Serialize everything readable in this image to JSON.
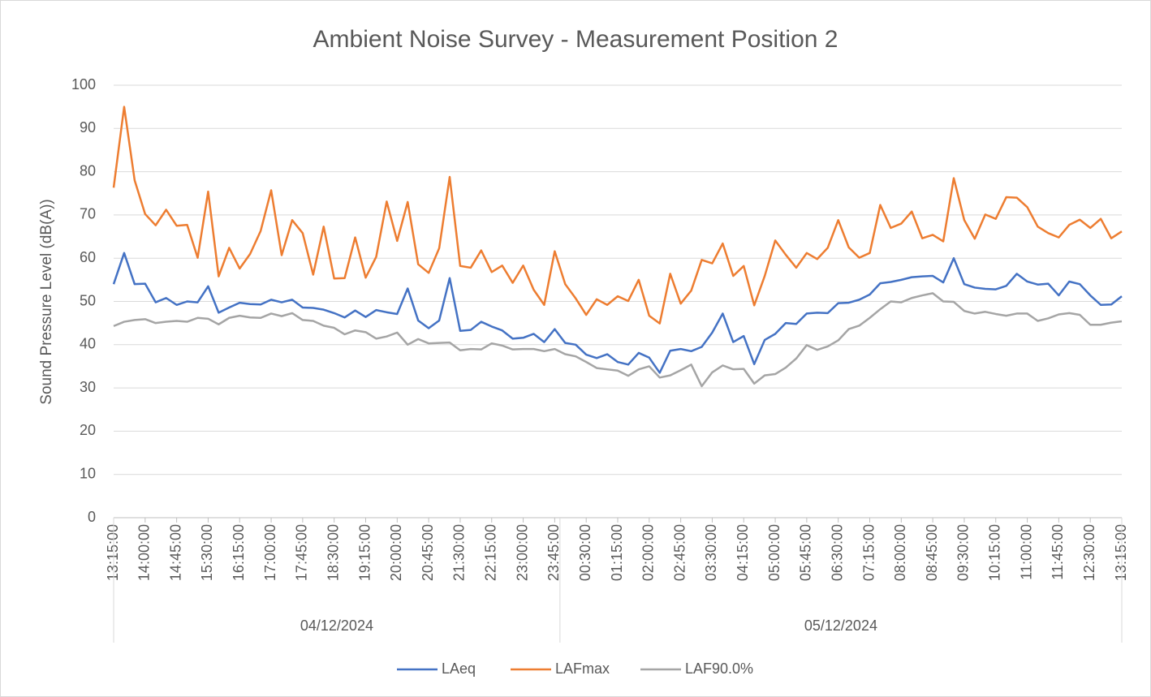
{
  "chart_data": {
    "type": "line",
    "title": "Ambient Noise Survey - Measurement Position 2",
    "y_label": "Sound Pressure Level (dB(A))",
    "categories": [
      "13:15:00",
      null,
      null,
      "14:00:00",
      null,
      null,
      "14:45:00",
      null,
      null,
      "15:30:00",
      null,
      null,
      "16:15:00",
      null,
      null,
      "17:00:00",
      null,
      null,
      "17:45:00",
      null,
      null,
      "18:30:00",
      null,
      null,
      "19:15:00",
      null,
      null,
      "20:00:00",
      null,
      null,
      "20:45:00",
      null,
      null,
      "21:30:00",
      null,
      null,
      "22:15:00",
      null,
      null,
      "23:00:00",
      null,
      null,
      "23:45:00",
      null,
      null,
      "00:30:00",
      null,
      null,
      "01:15:00",
      null,
      null,
      "02:00:00",
      null,
      null,
      "02:45:00",
      null,
      null,
      "03:30:00",
      null,
      null,
      "04:15:00",
      null,
      null,
      "05:00:00",
      null,
      null,
      "05:45:00",
      null,
      null,
      "06:30:00",
      null,
      null,
      "07:15:00",
      null,
      null,
      "08:00:00",
      null,
      null,
      "08:45:00",
      null,
      null,
      "09:30:00",
      null,
      null,
      "10:15:00",
      null,
      null,
      "11:00:00",
      null,
      null,
      "11:45:00",
      null,
      null,
      "12:30:00",
      null,
      null,
      "13:15:00"
    ],
    "groups": [
      {
        "label": "04/12/2024",
        "count": 43
      },
      {
        "label": "05/12/2024",
        "count": 54
      }
    ],
    "series": [
      {
        "name": "LAeq",
        "color": "#4472c4",
        "values": [
          54,
          61.2,
          54,
          54.1,
          49.8,
          50.8,
          49.2,
          50,
          49.8,
          53.5,
          47.4,
          48.6,
          49.7,
          49.4,
          49.3,
          50.4,
          49.8,
          50.4,
          48.6,
          48.5,
          48.1,
          47.3,
          46.3,
          47.9,
          46.4,
          48,
          47.5,
          47.1,
          53,
          45.6,
          43.8,
          45.6,
          55.4,
          43.2,
          43.4,
          45.3,
          44.2,
          43.3,
          41.4,
          41.6,
          42.5,
          40.6,
          43.6,
          40.4,
          40,
          37.7,
          36.9,
          37.8,
          36,
          35.4,
          38.1,
          37,
          33.5,
          38.6,
          39,
          38.5,
          39.5,
          42.8,
          47.2,
          40.6,
          42,
          35.5,
          41.1,
          42.5,
          45,
          44.8,
          47.2,
          47.4,
          47.3,
          49.6,
          49.7,
          50.4,
          51.6,
          54.2,
          54.5,
          55,
          55.6,
          55.8,
          55.9,
          54.4,
          60,
          54,
          53.2,
          52.9,
          52.8,
          53.6,
          56.4,
          54.6,
          53.9,
          54.1,
          51.4,
          54.6,
          54,
          51.4,
          49.2,
          49.3,
          51.2
        ]
      },
      {
        "name": "LAFmax",
        "color": "#ed7d31",
        "values": [
          76.3,
          95,
          78,
          70.2,
          67.6,
          71.2,
          67.5,
          67.7,
          60.1,
          75.4,
          55.8,
          62.4,
          57.6,
          61,
          66.3,
          75.7,
          60.7,
          68.8,
          65.8,
          56.2,
          67.3,
          55.3,
          55.4,
          64.8,
          55.5,
          60.3,
          73.1,
          64,
          73,
          58.6,
          56.6,
          62.3,
          78.8,
          58.2,
          57.8,
          61.8,
          56.8,
          58.3,
          54.3,
          58.3,
          52.7,
          49.2,
          61.6,
          54,
          50.7,
          46.9,
          50.5,
          49.2,
          51.2,
          50.1,
          55,
          46.7,
          44.9,
          56.4,
          49.5,
          52.5,
          59.6,
          58.8,
          63.4,
          55.9,
          58.2,
          49.1,
          55.9,
          64.1,
          60.8,
          57.8,
          61.2,
          59.8,
          62.4,
          68.8,
          62.5,
          60.1,
          61.2,
          72.3,
          67,
          68,
          70.8,
          64.6,
          65.4,
          63.9,
          78.5,
          68.8,
          64.5,
          70.1,
          69.1,
          74.1,
          74,
          71.8,
          67.3,
          65.8,
          64.8,
          67.7,
          68.9,
          67,
          69.1,
          64.6,
          66.2
        ]
      },
      {
        "name": "LAF90.0%",
        "color": "#a5a5a5",
        "values": [
          44.3,
          45.3,
          45.7,
          45.9,
          45,
          45.3,
          45.5,
          45.3,
          46.2,
          46,
          44.7,
          46.2,
          46.7,
          46.3,
          46.2,
          47.2,
          46.6,
          47.3,
          45.7,
          45.5,
          44.4,
          43.9,
          42.4,
          43.3,
          42.9,
          41.4,
          41.9,
          42.8,
          40,
          41.3,
          40.3,
          40.4,
          40.5,
          38.7,
          39,
          38.9,
          40.3,
          39.8,
          38.9,
          39,
          39,
          38.5,
          39,
          37.8,
          37.3,
          36,
          34.6,
          34.3,
          34,
          32.8,
          34.3,
          35,
          32.4,
          32.9,
          34.1,
          35.4,
          30.4,
          33.6,
          35.2,
          34.3,
          34.4,
          31,
          32.9,
          33.2,
          34.7,
          36.8,
          39.9,
          38.8,
          39.6,
          41,
          43.6,
          44.4,
          46.2,
          48.2,
          50,
          49.8,
          50.8,
          51.4,
          51.9,
          50,
          49.9,
          47.8,
          47.2,
          47.6,
          47.1,
          46.7,
          47.2,
          47.2,
          45.5,
          46.1,
          47,
          47.3,
          46.9,
          44.6,
          44.6,
          45.1,
          45.4
        ]
      }
    ],
    "ylim": [
      0,
      100
    ],
    "yticks": [
      0,
      10,
      20,
      30,
      40,
      50,
      60,
      70,
      80,
      90,
      100
    ],
    "grid": true,
    "legend": "bottom"
  }
}
